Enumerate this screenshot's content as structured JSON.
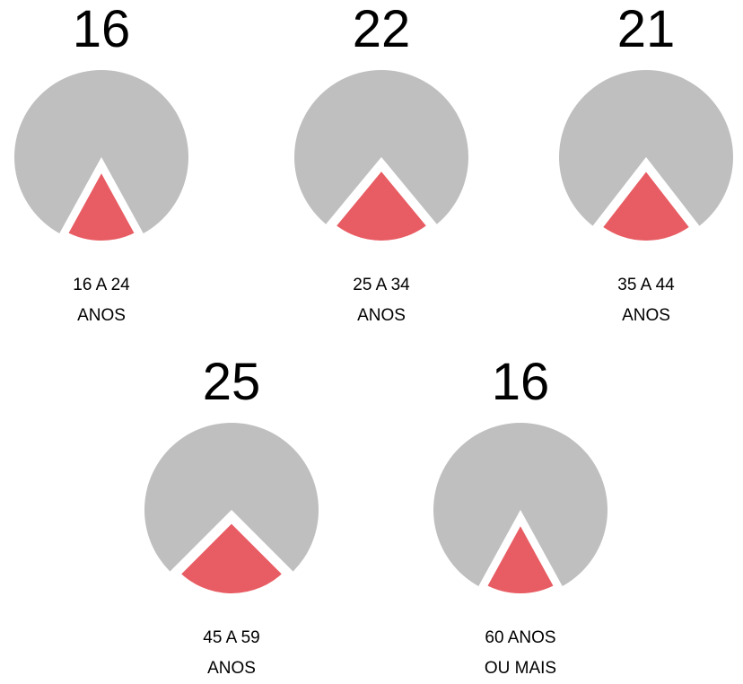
{
  "chart_data": [
    {
      "type": "pie",
      "value": 16,
      "category": "16 A 24 ANOS",
      "color": "#e85c63",
      "rest_color": "#bfbfbf"
    },
    {
      "type": "pie",
      "value": 22,
      "category": "25 A 34 ANOS",
      "color": "#e85c63",
      "rest_color": "#bfbfbf"
    },
    {
      "type": "pie",
      "value": 21,
      "category": "35 A 44 ANOS",
      "color": "#e85c63",
      "rest_color": "#bfbfbf"
    },
    {
      "type": "pie",
      "value": 25,
      "category": "45 A 59 ANOS",
      "color": "#e85c63",
      "rest_color": "#bfbfbf"
    },
    {
      "type": "pie",
      "value": 16,
      "category": "60 ANOS OU MAIS",
      "color": "#e85c63",
      "rest_color": "#bfbfbf"
    }
  ]
}
